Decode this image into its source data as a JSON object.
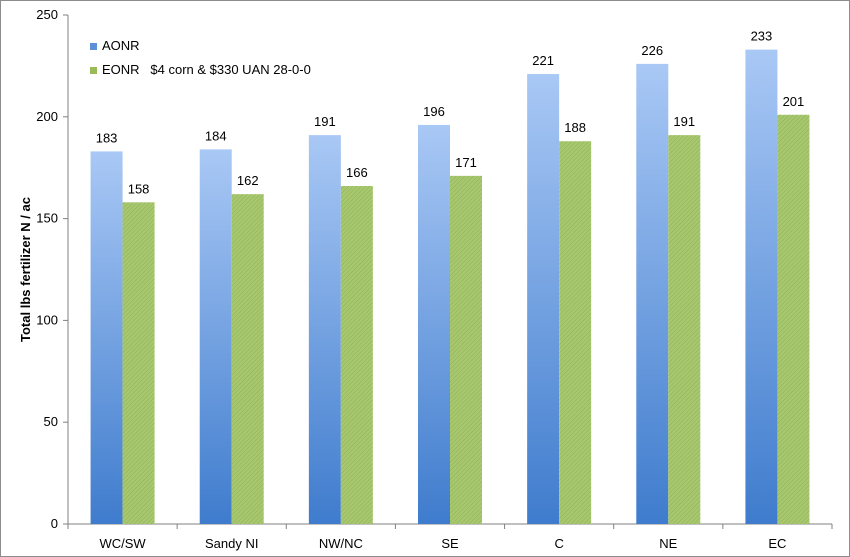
{
  "chart_data": {
    "type": "bar",
    "title": "",
    "xlabel": "",
    "ylabel": "Total lbs fertilizer  N / ac",
    "ylim": [
      0,
      250
    ],
    "yticks": [
      0,
      50,
      100,
      150,
      200,
      250
    ],
    "categories": [
      "WC/SW",
      "Sandy NI",
      "NW/NC",
      "SE",
      "C",
      "NE",
      "EC"
    ],
    "series": [
      {
        "name": "AONR",
        "values": [
          183,
          184,
          191,
          196,
          221,
          226,
          233
        ],
        "color": "#5b8fd6"
      },
      {
        "name": "EONR   $4 corn & $330 UAN 28-0-0",
        "values": [
          158,
          162,
          166,
          171,
          188,
          191,
          201
        ],
        "color": "#9bbb59"
      }
    ],
    "data_labels": true,
    "grid": false,
    "legend": "top-left"
  }
}
